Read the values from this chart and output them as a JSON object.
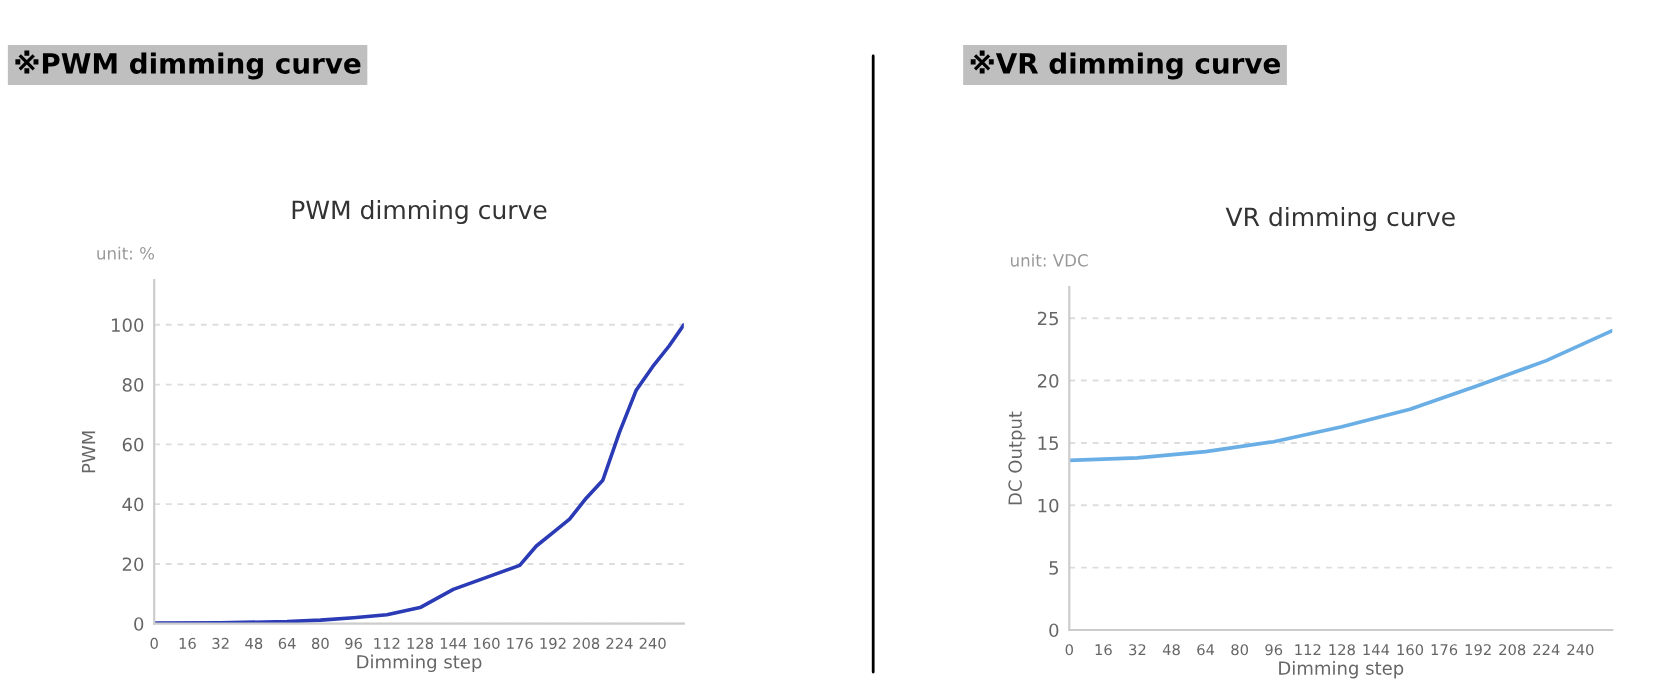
{
  "chart_data": [
    {
      "type": "line",
      "title": "PWM dimming curve",
      "xlabel": "Dimming step",
      "ylabel": "PWM",
      "annotations": [
        "※PWM dimming curve",
        "unit: %"
      ],
      "x": [
        0,
        32,
        64,
        80,
        96,
        112,
        128,
        144,
        160,
        176,
        184,
        192,
        200,
        208,
        216,
        224,
        232,
        240,
        248,
        255
      ],
      "series": [
        {
          "color": "#2a3bb5",
          "values": [
            0.2,
            0.3,
            0.7,
            1.2,
            2,
            3,
            5.4,
            11.5,
            15.5,
            19.5,
            26,
            30.5,
            35,
            42,
            48,
            64,
            78,
            86,
            93,
            100
          ]
        }
      ],
      "xlim": [
        0,
        255
      ],
      "xticks": [
        0,
        16,
        32,
        48,
        64,
        80,
        96,
        112,
        128,
        144,
        160,
        176,
        192,
        208,
        224,
        240
      ],
      "ylim": [
        0,
        115
      ],
      "yticks": [
        0,
        20,
        40,
        60,
        80,
        100
      ],
      "grid": "y",
      "legend": false
    },
    {
      "type": "line",
      "title": "VR dimming curve",
      "xlabel": "Dimming step",
      "ylabel": "DC Output",
      "annotations": [
        "※VR dimming curve",
        "unit: VDC"
      ],
      "x": [
        0,
        32,
        64,
        96,
        128,
        160,
        192,
        224,
        255
      ],
      "series": [
        {
          "color": "#6aaee6",
          "values": [
            13.6,
            13.8,
            14.3,
            15.1,
            16.3,
            17.7,
            19.6,
            21.6,
            24.0
          ]
        }
      ],
      "xlim": [
        0,
        255
      ],
      "xticks": [
        0,
        16,
        32,
        48,
        64,
        80,
        96,
        112,
        128,
        144,
        160,
        176,
        192,
        208,
        224,
        240
      ],
      "ylim": [
        0,
        27.5
      ],
      "yticks": [
        0,
        5,
        10,
        15,
        20,
        25
      ],
      "grid": "y",
      "legend": false
    }
  ]
}
